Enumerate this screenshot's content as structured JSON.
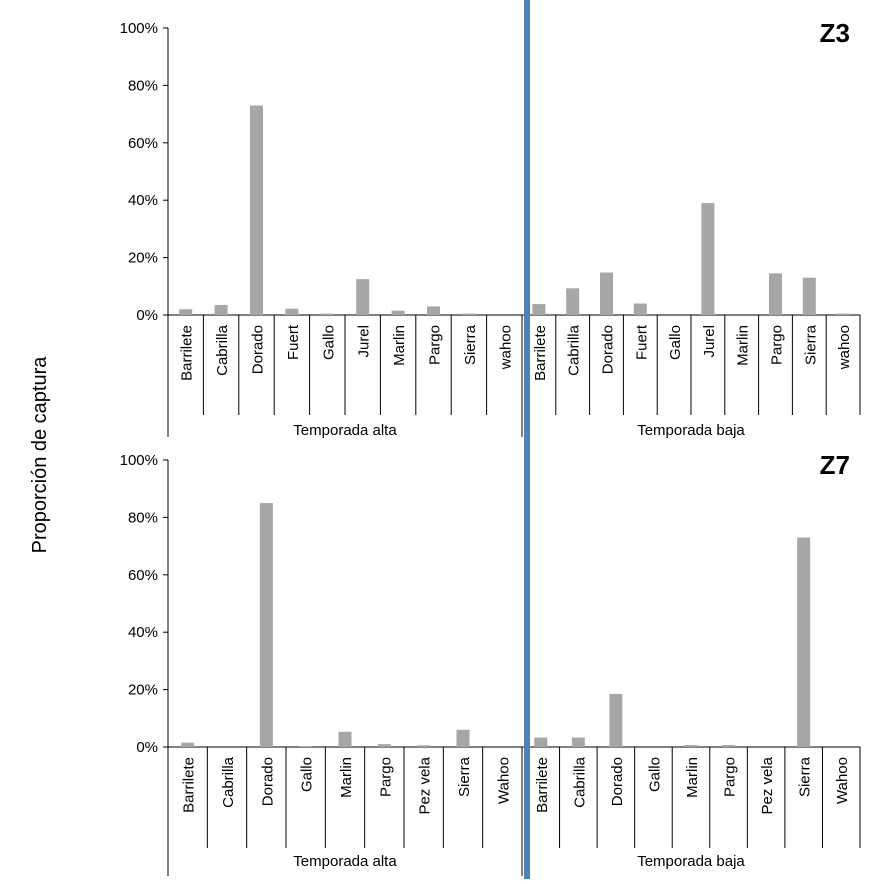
{
  "chart_data": {
    "type": "bar",
    "ylabel": "Proporción de captura",
    "yticks": [
      "0%",
      "20%",
      "40%",
      "60%",
      "80%",
      "100%"
    ],
    "ylim": [
      0,
      100
    ],
    "grid": false,
    "bar_color": "#a6a6a6",
    "divider_color": "#4f81bd",
    "panels": [
      {
        "title": "Z3",
        "groups": [
          {
            "label": "Temporada alta",
            "categories": [
              "Barrilete",
              "Cabrilla",
              "Dorado",
              "Fuert",
              "Gallo",
              "Jurel",
              "Marlin",
              "Pargo",
              "Sierra",
              "wahoo"
            ],
            "values": [
              2,
              3.5,
              73,
              2.2,
              0.5,
              12.5,
              1.5,
              3,
              0.5,
              0
            ]
          },
          {
            "label": "Temporada baja",
            "categories": [
              "Barrilete",
              "Cabrilla",
              "Dorado",
              "Fuert",
              "Gallo",
              "Jurel",
              "Marlin",
              "Pargo",
              "Sierra",
              "wahoo"
            ],
            "values": [
              3.8,
              9.3,
              14.8,
              4,
              0,
              39,
              0,
              14.5,
              13,
              0.5
            ]
          }
        ]
      },
      {
        "title": "Z7",
        "groups": [
          {
            "label": "Temporada alta",
            "categories": [
              "Barrilete",
              "Cabrilla",
              "Dorado",
              "Gallo",
              "Marlin",
              "Pargo",
              "Pez vela",
              "Sierra",
              "Wahoo"
            ],
            "values": [
              1.5,
              0,
              85,
              0.3,
              5.3,
              1,
              0.6,
              6,
              0
            ]
          },
          {
            "label": "Temporada baja",
            "categories": [
              "Barrilete",
              "Cabrilla",
              "Dorado",
              "Gallo",
              "Marlin",
              "Pargo",
              "Pez vela",
              "Sierra",
              "Wahoo"
            ],
            "values": [
              3.3,
              3.3,
              18.5,
              0,
              0.7,
              0.7,
              0,
              73,
              0
            ]
          }
        ]
      }
    ]
  }
}
